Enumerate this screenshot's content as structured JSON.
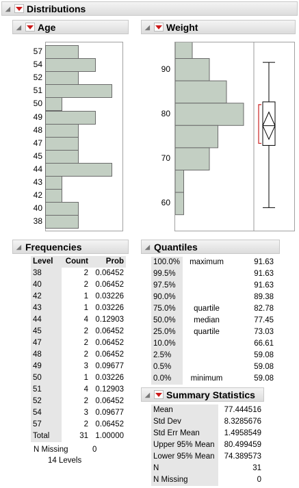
{
  "title": "Distributions",
  "age": {
    "title": "Age",
    "categories": [
      "57",
      "54",
      "52",
      "51",
      "50",
      "49",
      "48",
      "47",
      "45",
      "44",
      "43",
      "42",
      "40",
      "38"
    ],
    "counts": [
      2,
      3,
      2,
      4,
      1,
      3,
      2,
      2,
      2,
      4,
      1,
      1,
      2,
      2
    ]
  },
  "weight": {
    "title": "Weight",
    "ticks": [
      "90",
      "80",
      "70",
      "60"
    ],
    "histogram": [
      {
        "from": 92.5,
        "to": 97.5,
        "count": 1
      },
      {
        "from": 87.5,
        "to": 92.5,
        "count": 2
      },
      {
        "from": 82.5,
        "to": 87.5,
        "count": 3
      },
      {
        "from": 77.5,
        "to": 82.5,
        "count": 4
      },
      {
        "from": 72.5,
        "to": 77.5,
        "count": 2.5
      },
      {
        "from": 67.5,
        "to": 72.5,
        "count": 2
      },
      {
        "from": 62.5,
        "to": 67.5,
        "count": 0.5
      },
      {
        "from": 57.5,
        "to": 62.5,
        "count": 0.5
      }
    ],
    "box": {
      "min": 59.08,
      "q1": 73.03,
      "median": 77.45,
      "q3": 82.78,
      "max": 91.63,
      "mean": 77.444516,
      "ci_low": 74.389573,
      "ci_high": 80.499459
    }
  },
  "frequencies": {
    "title": "Frequencies",
    "headers": [
      "Level",
      "Count",
      "Prob"
    ],
    "rows": [
      [
        "38",
        "2",
        "0.06452"
      ],
      [
        "40",
        "2",
        "0.06452"
      ],
      [
        "42",
        "1",
        "0.03226"
      ],
      [
        "43",
        "1",
        "0.03226"
      ],
      [
        "44",
        "4",
        "0.12903"
      ],
      [
        "45",
        "2",
        "0.06452"
      ],
      [
        "47",
        "2",
        "0.06452"
      ],
      [
        "48",
        "2",
        "0.06452"
      ],
      [
        "49",
        "3",
        "0.09677"
      ],
      [
        "50",
        "1",
        "0.03226"
      ],
      [
        "51",
        "4",
        "0.12903"
      ],
      [
        "52",
        "2",
        "0.06452"
      ],
      [
        "54",
        "3",
        "0.09677"
      ],
      [
        "57",
        "2",
        "0.06452"
      ]
    ],
    "total": [
      "Total",
      "31",
      "1.00000"
    ],
    "n_missing_label": "N Missing",
    "n_missing_value": "0",
    "levels_count": "14",
    "levels_label": "Levels"
  },
  "quantiles": {
    "title": "Quantiles",
    "rows": [
      [
        "100.0%",
        "maximum",
        "91.63"
      ],
      [
        "99.5%",
        "",
        "91.63"
      ],
      [
        "97.5%",
        "",
        "91.63"
      ],
      [
        "90.0%",
        "",
        "89.38"
      ],
      [
        "75.0%",
        "quartile",
        "82.78"
      ],
      [
        "50.0%",
        "median",
        "77.45"
      ],
      [
        "25.0%",
        "quartile",
        "73.03"
      ],
      [
        "10.0%",
        "",
        "66.61"
      ],
      [
        "2.5%",
        "",
        "59.08"
      ],
      [
        "0.5%",
        "",
        "59.08"
      ],
      [
        "0.0%",
        "minimum",
        "59.08"
      ]
    ]
  },
  "summary": {
    "title": "Summary Statistics",
    "rows": [
      [
        "Mean",
        "77.444516"
      ],
      [
        "Std Dev",
        "8.3285676"
      ],
      [
        "Std Err Mean",
        "1.4958549"
      ],
      [
        "Upper 95% Mean",
        "80.499459"
      ],
      [
        "Lower 95% Mean",
        "74.389573"
      ],
      [
        "N",
        "31"
      ],
      [
        "N Missing",
        "0"
      ]
    ]
  },
  "colors": {
    "bar_fill": "#c3cfc3",
    "menu_red": "#cc1a1a",
    "ci_red": "#cc2222"
  }
}
